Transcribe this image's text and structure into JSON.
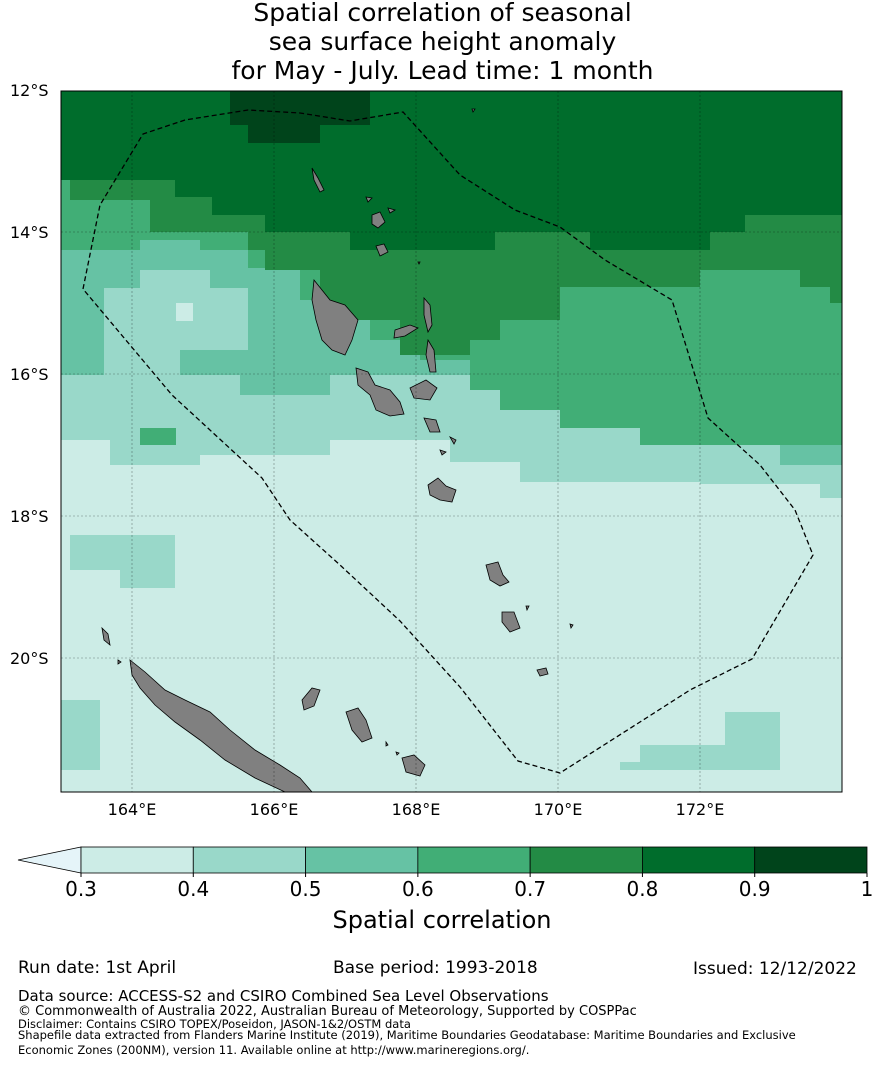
{
  "title": {
    "line1": "Spatial correlation of seasonal",
    "line2": "sea surface height anomaly",
    "line3": "for May - July. Lead time: 1 month"
  },
  "axes": {
    "lat_labels": [
      "12°S",
      "14°S",
      "16°S",
      "18°S",
      "20°S"
    ],
    "lon_labels": [
      "164°E",
      "166°E",
      "168°E",
      "170°E",
      "172°E"
    ],
    "lat_range": [
      -22,
      -12
    ],
    "lon_range": [
      163,
      174
    ],
    "grid": true
  },
  "colorbar": {
    "title": "Spatial correlation",
    "ticks": [
      "0.3",
      "0.4",
      "0.5",
      "0.6",
      "0.7",
      "0.8",
      "0.9",
      "1"
    ],
    "under_color": "#e5f4f9",
    "colors": [
      "#ccece6",
      "#99d8c9",
      "#66c2a4",
      "#41ae76",
      "#238b45",
      "#006d2c",
      "#00441b"
    ],
    "extend": "min"
  },
  "footer": {
    "run_date": "Run date: 1st April",
    "base_period": "Base period: 1993-2018",
    "issued": "Issued: 12/12/2022",
    "data_source": "Data source: ACCESS-S2 and CSIRO Combined Sea Level Observations",
    "copyright": "© Commonwealth of Australia 2022, Australian Bureau of Meteorology, Supported by COSPPac",
    "disclaimer": "Disclaimer: Contains CSIRO TOPEX/Poseidon, JASON-1&2/OSTM data",
    "shapefile_line1": "Shapefile data extracted from Flanders Marine Institute (2019), Maritime Boundaries Geodatabase: Maritime Boundaries and Exclusive",
    "shapefile_line2": "Economic Zones (200NM), version 11. Available online at http://www.marineregions.org/."
  },
  "map": {
    "land_color": "#808080",
    "eez_boundary": "dashed"
  }
}
